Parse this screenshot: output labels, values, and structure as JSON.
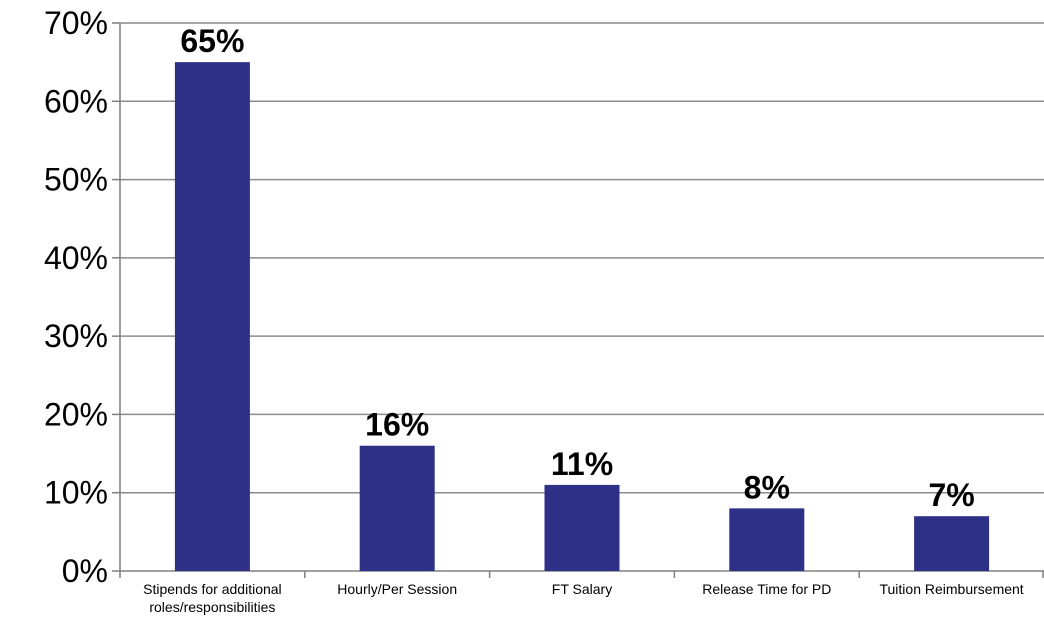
{
  "chart_data": {
    "type": "bar",
    "categories": [
      [
        "Stipends for additional",
        "roles/responsibilities"
      ],
      [
        "Hourly/Per Session"
      ],
      [
        "FT Salary"
      ],
      [
        "Release Time for PD"
      ],
      [
        "Tuition Reimbursement"
      ]
    ],
    "values": [
      65,
      16,
      11,
      8,
      7
    ],
    "data_labels": [
      "65%",
      "16%",
      "11%",
      "8%",
      "7%"
    ],
    "y_ticks": [
      {
        "value": 0,
        "label": "0%"
      },
      {
        "value": 10,
        "label": "10%"
      },
      {
        "value": 20,
        "label": "20%"
      },
      {
        "value": 30,
        "label": "30%"
      },
      {
        "value": 40,
        "label": "40%"
      },
      {
        "value": 50,
        "label": "50%"
      },
      {
        "value": 60,
        "label": "60%"
      },
      {
        "value": 70,
        "label": "70%"
      }
    ],
    "ylim": [
      0,
      70
    ],
    "grid": true,
    "legend": "none",
    "colors": {
      "bar": "#2e3087",
      "grid": "#8c8c8c",
      "axis": "#808080",
      "text": "#000000"
    }
  }
}
